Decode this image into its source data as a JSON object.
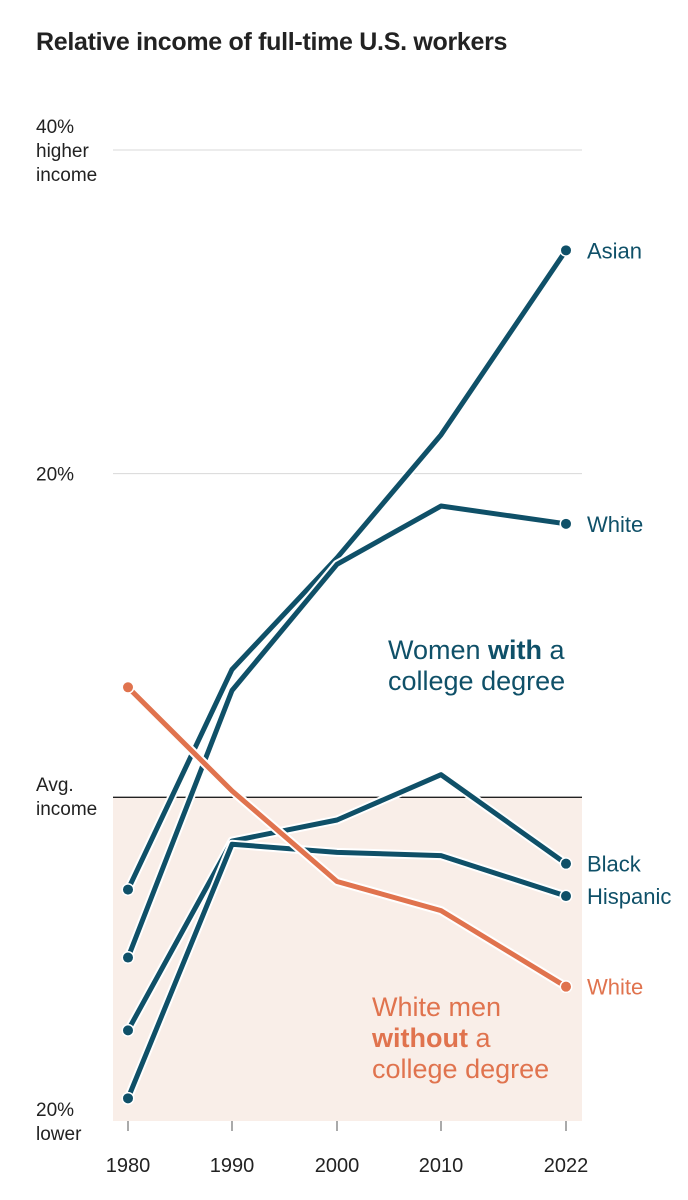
{
  "colors": {
    "teal": "#0f5068",
    "orange": "#e0734e",
    "shade": "#f9eee8",
    "grid": "#d8d8d8",
    "baseline": "#222222"
  },
  "chart_data": {
    "type": "line",
    "title": "Relative income of full-time U.S. workers",
    "x": [
      1980,
      1990,
      2000,
      2010,
      2022
    ],
    "x_tick_labels": [
      "1980",
      "1990",
      "2000",
      "2010",
      "2022"
    ],
    "ylim": [
      -20,
      40
    ],
    "y_ticks": [
      {
        "value": 40,
        "lines": [
          "40%",
          "higher",
          "income"
        ]
      },
      {
        "value": 20,
        "lines": [
          "20%"
        ]
      },
      {
        "value": 0,
        "lines": [
          "Avg.",
          "income"
        ]
      },
      {
        "value": -20,
        "lines": [
          "20%",
          "lower"
        ]
      }
    ],
    "series": [
      {
        "name": "Women with a college degree — Asian",
        "label": "Asian",
        "group": "teal",
        "values": [
          -5.7,
          7.9,
          14.8,
          22.4,
          33.8
        ]
      },
      {
        "name": "Women with a college degree — White",
        "label": "White",
        "group": "teal",
        "values": [
          -9.9,
          6.6,
          14.4,
          18.0,
          16.9
        ]
      },
      {
        "name": "Women with a college degree — Black",
        "label": "Black",
        "group": "teal",
        "values": [
          -14.4,
          -2.7,
          -1.4,
          1.4,
          -4.1
        ]
      },
      {
        "name": "Women with a college degree — Hispanic",
        "label": "Hispanic",
        "group": "teal",
        "values": [
          -18.6,
          -2.9,
          -3.4,
          -3.6,
          -6.1
        ]
      },
      {
        "name": "White men without a college degree — White",
        "label": "White",
        "group": "orange",
        "values": [
          6.8,
          0.4,
          -5.2,
          -7.0,
          -11.7
        ]
      }
    ],
    "groups": {
      "teal": {
        "line1_pre": "Women ",
        "line1_bold": "with",
        "line1_post": " a",
        "line2": "college degree"
      },
      "orange": {
        "line1": "White men",
        "line2_bold": "without",
        "line2_post": " a",
        "line3": "college degree"
      }
    }
  }
}
